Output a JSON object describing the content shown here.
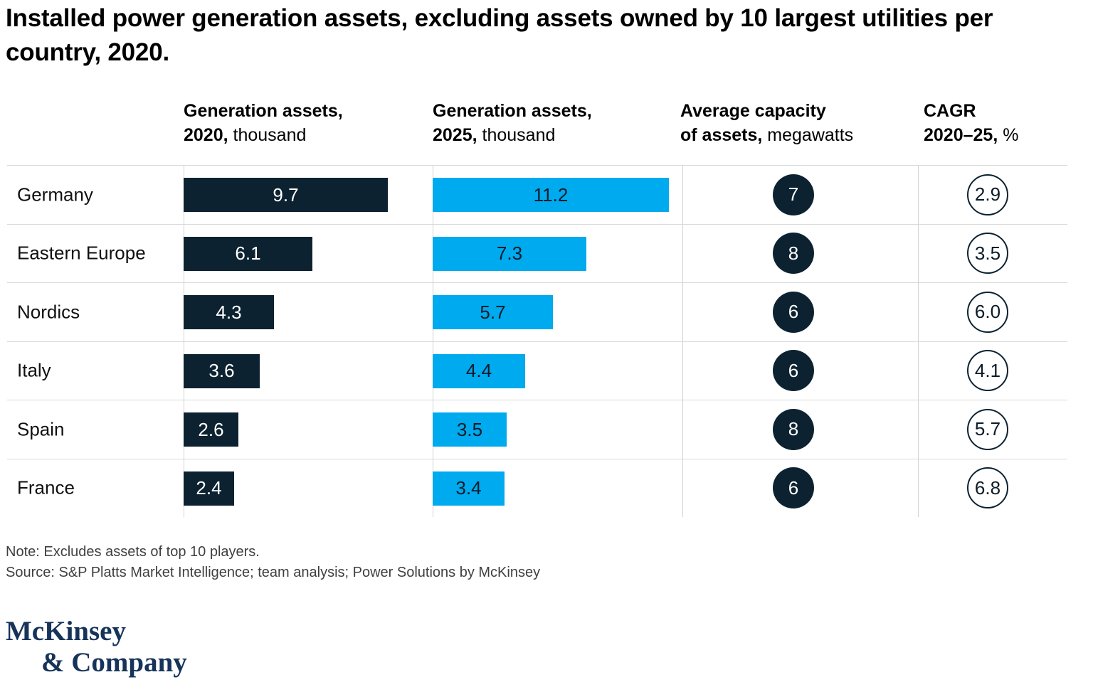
{
  "title": "Installed power generation assets, excluding assets owned by 10 largest utilities per country, 2020.",
  "columns": [
    {
      "bold1": "Generation assets,",
      "bold2": "2020,",
      "unit": "thousand"
    },
    {
      "bold1": "Generation assets,",
      "bold2": "2025,",
      "unit": "thousand"
    },
    {
      "bold1": "Average capacity",
      "bold2": "of assets,",
      "unit": "megawatts"
    },
    {
      "bold1": "CAGR",
      "bold2": "2020–25,",
      "unit": "%"
    }
  ],
  "rows": [
    {
      "label": "Germany",
      "gen2020": "9.7",
      "gen2025": "11.2",
      "capacity": "7",
      "cagr": "2.9"
    },
    {
      "label": "Eastern Europe",
      "gen2020": "6.1",
      "gen2025": "7.3",
      "capacity": "8",
      "cagr": "3.5"
    },
    {
      "label": "Nordics",
      "gen2020": "4.3",
      "gen2025": "5.7",
      "capacity": "6",
      "cagr": "6.0"
    },
    {
      "label": "Italy",
      "gen2020": "3.6",
      "gen2025": "4.4",
      "capacity": "6",
      "cagr": "4.1"
    },
    {
      "label": "Spain",
      "gen2020": "2.6",
      "gen2025": "3.5",
      "capacity": "8",
      "cagr": "5.7"
    },
    {
      "label": "France",
      "gen2020": "2.4",
      "gen2025": "3.4",
      "capacity": "6",
      "cagr": "6.8"
    }
  ],
  "note": "Note: Excludes assets of top 10 players.",
  "source": "Source: S&P Platts Market Intelligence; team analysis; Power Solutions by McKinsey",
  "logo": {
    "line1": "McKinsey",
    "line2": "& Company"
  },
  "colors": {
    "dark_navy_bar": "#0c2231",
    "electric_blue_bar": "#00aaee",
    "grid_line": "#d9d9d9",
    "note_text": "#3f3f3f",
    "logo_navy": "#16335a"
  },
  "chart_data": {
    "type": "bar",
    "orientation": "horizontal",
    "title": "Installed power generation assets, excluding assets owned by 10 largest utilities per country, 2020.",
    "categories": [
      "Germany",
      "Eastern Europe",
      "Nordics",
      "Italy",
      "Spain",
      "France"
    ],
    "series": [
      {
        "name": "Generation assets, 2020, thousand",
        "style": "bar-dark-navy",
        "values": [
          9.7,
          6.1,
          4.3,
          3.6,
          2.6,
          2.4
        ]
      },
      {
        "name": "Generation assets, 2025, thousand",
        "style": "bar-light-blue",
        "values": [
          11.2,
          7.3,
          5.7,
          4.4,
          3.5,
          3.4
        ]
      },
      {
        "name": "Average capacity of assets, megawatts",
        "style": "filled-circle-badge",
        "values": [
          7,
          8,
          6,
          6,
          8,
          6
        ]
      },
      {
        "name": "CAGR 2020–25, %",
        "style": "outlined-circle-badge",
        "values": [
          2.9,
          3.5,
          6.0,
          4.1,
          5.7,
          6.8
        ]
      }
    ],
    "xlabel": "",
    "ylabel": "",
    "xlim": [
      0,
      11.2
    ],
    "grid": "horizontal row separators and vertical column rules, light gray",
    "legend_position": "none (column headers act as series labels)",
    "note": "Note: Excludes assets of top 10 players.",
    "source": "Source: S&P Platts Market Intelligence; team analysis; Power Solutions by McKinsey"
  }
}
